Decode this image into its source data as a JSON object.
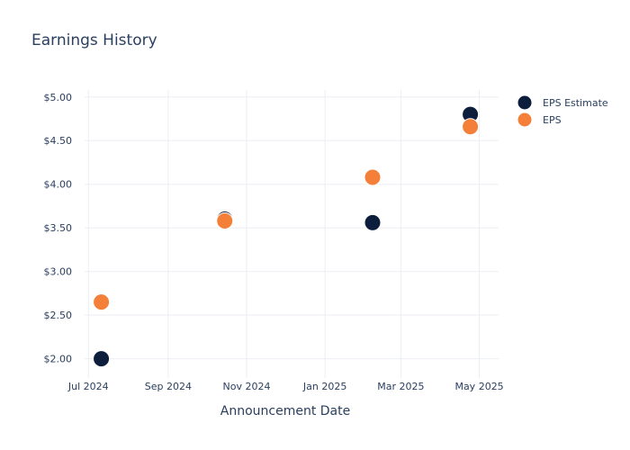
{
  "chart_data": {
    "type": "scatter",
    "title": "Earnings History",
    "xlabel": "Announcement Date",
    "ylabel": "",
    "x_ticks": [
      "2024-07-01",
      "2024-09-01",
      "2024-11-01",
      "2025-01-01",
      "2025-03-01",
      "2025-05-01"
    ],
    "x_tick_labels": [
      "Jul 2024",
      "Sep 2024",
      "Nov 2024",
      "Jan 2025",
      "Mar 2025",
      "May 2025"
    ],
    "xlim": [
      "2024-06-28",
      "2025-05-16"
    ],
    "y_ticks": [
      2.0,
      2.5,
      3.0,
      3.5,
      4.0,
      4.5,
      5.0
    ],
    "y_tick_labels": [
      "$2.00",
      "$2.50",
      "$3.00",
      "$3.50",
      "$4.00",
      "$4.50",
      "$5.00"
    ],
    "ylim": [
      1.78,
      5.08
    ],
    "grid": true,
    "legend_position": "top-right",
    "series": [
      {
        "name": "EPS Estimate",
        "color": "#0d1e3d",
        "x": [
          "2024-07-11",
          "2024-10-15",
          "2025-02-07",
          "2025-04-24"
        ],
        "y": [
          2.0,
          3.6,
          3.56,
          4.8
        ]
      },
      {
        "name": "EPS",
        "color": "#f47f38",
        "x": [
          "2024-07-11",
          "2024-10-15",
          "2025-02-07",
          "2025-04-24"
        ],
        "y": [
          2.65,
          3.58,
          4.08,
          4.66
        ]
      }
    ]
  }
}
